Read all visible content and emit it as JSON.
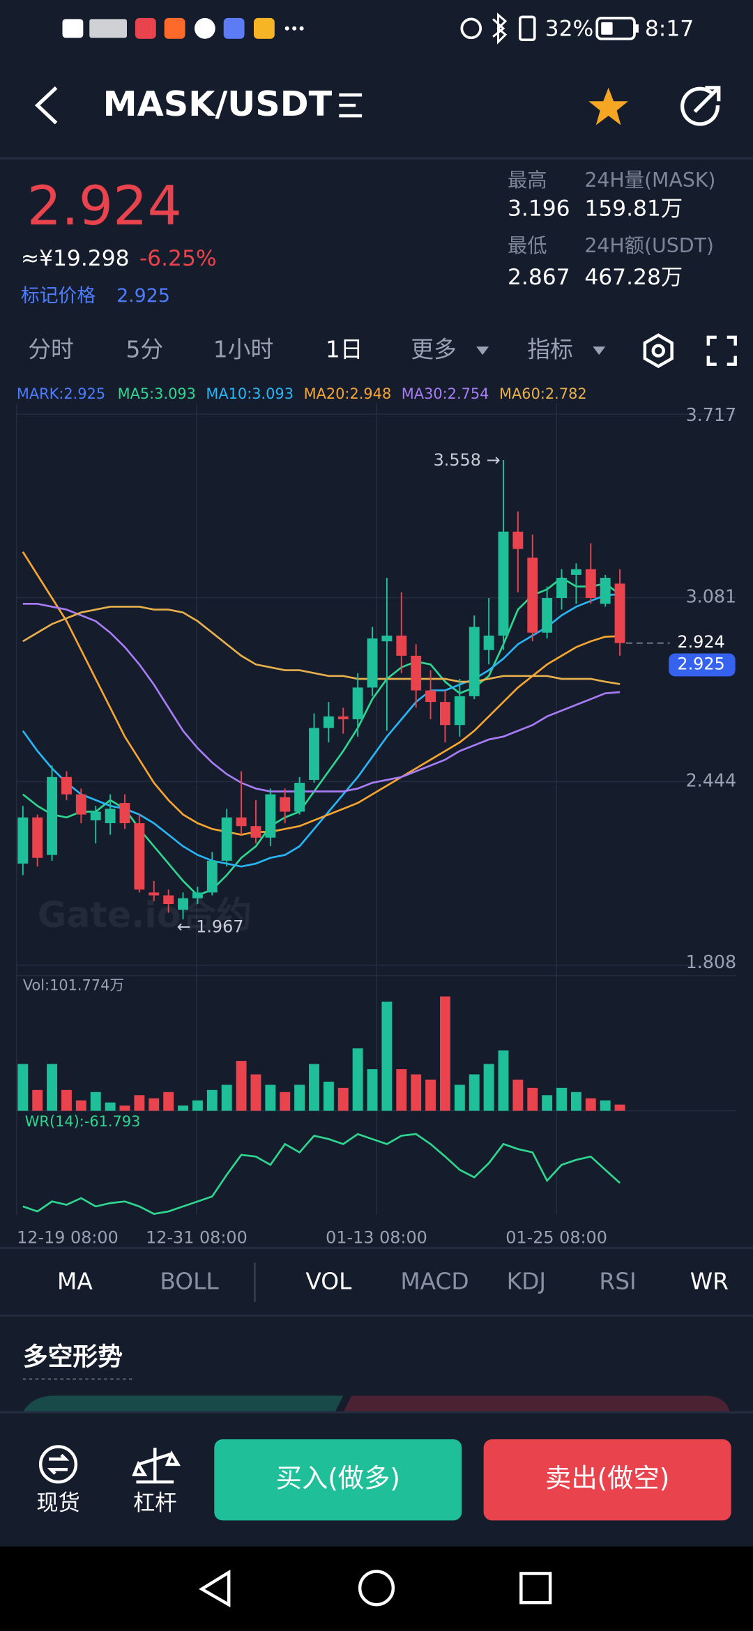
{
  "status_bar": {
    "battery": "32%",
    "time": "8:17"
  },
  "header": {
    "pair": "MASK/USDT"
  },
  "ticker": {
    "price": "2.924",
    "cny": "≈¥19.298",
    "change": "-6.25%",
    "mark_label": "标记价格",
    "mark_price": "2.925",
    "high_label": "最高",
    "high": "3.196",
    "low_label": "最低",
    "low": "2.867",
    "vol_label": "24H量(MASK)",
    "vol": "159.81万",
    "amount_label": "24H额(USDT)",
    "amount": "467.28万"
  },
  "intervals": {
    "items": [
      "分时",
      "5分",
      "1小时",
      "1日",
      "更多",
      "指标"
    ],
    "active": 3
  },
  "legend": [
    {
      "text": "MARK:2.925",
      "color": "#4d7cff"
    },
    {
      "text": "MA5:3.093",
      "color": "#2fd68f"
    },
    {
      "text": "MA10:3.093",
      "color": "#29b6f6"
    },
    {
      "text": "MA20:2.948",
      "color": "#f7a531"
    },
    {
      "text": "MA30:2.754",
      "color": "#a77cf5"
    },
    {
      "text": "MA60:2.782",
      "color": "#e8b04c"
    }
  ],
  "chart": {
    "type": "candlestick",
    "ylim": [
      1.808,
      3.717
    ],
    "yticks": [
      3.717,
      3.081,
      2.444,
      1.808
    ],
    "up_color": "#1fbf9a",
    "down_color": "#e9434d",
    "candles": [
      [
        2.16,
        2.36,
        2.12,
        2.32
      ],
      [
        2.32,
        2.33,
        2.15,
        2.18
      ],
      [
        2.19,
        2.5,
        2.17,
        2.46
      ],
      [
        2.46,
        2.48,
        2.38,
        2.4
      ],
      [
        2.4,
        2.42,
        2.3,
        2.33
      ],
      [
        2.31,
        2.36,
        2.23,
        2.34
      ],
      [
        2.3,
        2.4,
        2.26,
        2.35
      ],
      [
        2.37,
        2.4,
        2.28,
        2.3
      ],
      [
        2.3,
        2.33,
        2.06,
        2.07
      ],
      [
        2.06,
        2.1,
        2.03,
        2.05
      ],
      [
        2.05,
        2.07,
        1.99,
        2.02
      ],
      [
        2.0,
        2.06,
        1.967,
        2.04
      ],
      [
        2.04,
        2.08,
        2.02,
        2.06
      ],
      [
        2.06,
        2.2,
        2.05,
        2.17
      ],
      [
        2.17,
        2.35,
        2.15,
        2.32
      ],
      [
        2.32,
        2.48,
        2.26,
        2.29
      ],
      [
        2.29,
        2.38,
        2.23,
        2.25
      ],
      [
        2.25,
        2.42,
        2.22,
        2.4
      ],
      [
        2.39,
        2.42,
        2.3,
        2.34
      ],
      [
        2.34,
        2.46,
        2.33,
        2.44
      ],
      [
        2.45,
        2.68,
        2.44,
        2.63
      ],
      [
        2.63,
        2.72,
        2.58,
        2.67
      ],
      [
        2.67,
        2.7,
        2.61,
        2.66
      ],
      [
        2.66,
        2.82,
        2.6,
        2.77
      ],
      [
        2.77,
        2.98,
        2.74,
        2.94
      ],
      [
        2.93,
        3.15,
        2.62,
        2.95
      ],
      [
        2.95,
        3.1,
        2.82,
        2.88
      ],
      [
        2.88,
        2.92,
        2.7,
        2.76
      ],
      [
        2.76,
        2.83,
        2.66,
        2.72
      ],
      [
        2.72,
        2.76,
        2.58,
        2.64
      ],
      [
        2.64,
        2.8,
        2.6,
        2.74
      ],
      [
        2.74,
        3.02,
        2.73,
        2.98
      ],
      [
        2.9,
        3.08,
        2.85,
        2.95
      ],
      [
        2.95,
        3.558,
        2.9,
        3.31
      ],
      [
        3.31,
        3.38,
        3.1,
        3.25
      ],
      [
        3.22,
        3.3,
        2.93,
        2.96
      ],
      [
        2.96,
        3.12,
        2.94,
        3.08
      ],
      [
        3.08,
        3.18,
        3.04,
        3.15
      ],
      [
        3.16,
        3.2,
        3.06,
        3.18
      ],
      [
        3.18,
        3.27,
        3.06,
        3.08
      ],
      [
        3.06,
        3.16,
        3.05,
        3.15
      ],
      [
        3.13,
        3.18,
        2.88,
        2.924
      ]
    ],
    "lines": [
      {
        "name": "MA5",
        "color": "#2fd68f",
        "values": [
          2.4,
          2.36,
          2.33,
          2.32,
          2.34,
          2.34,
          2.38,
          2.35,
          2.28,
          2.22,
          2.16,
          2.1,
          2.05,
          2.07,
          2.12,
          2.18,
          2.22,
          2.29,
          2.32,
          2.34,
          2.41,
          2.48,
          2.55,
          2.63,
          2.73,
          2.8,
          2.84,
          2.86,
          2.85,
          2.79,
          2.75,
          2.77,
          2.81,
          2.92,
          3.04,
          3.09,
          3.11,
          3.15,
          3.12,
          3.12,
          3.13,
          3.093
        ]
      },
      {
        "name": "MA10",
        "color": "#29b6f6",
        "values": [
          2.62,
          2.55,
          2.49,
          2.44,
          2.4,
          2.38,
          2.36,
          2.35,
          2.33,
          2.3,
          2.26,
          2.22,
          2.19,
          2.17,
          2.16,
          2.15,
          2.16,
          2.18,
          2.19,
          2.22,
          2.28,
          2.34,
          2.4,
          2.46,
          2.53,
          2.6,
          2.66,
          2.72,
          2.76,
          2.76,
          2.78,
          2.8,
          2.83,
          2.87,
          2.92,
          2.95,
          2.98,
          3.02,
          3.05,
          3.07,
          3.09,
          3.093
        ]
      },
      {
        "name": "MA20",
        "color": "#f7a531",
        "values": [
          3.24,
          3.16,
          3.08,
          3.0,
          2.9,
          2.8,
          2.7,
          2.6,
          2.52,
          2.44,
          2.38,
          2.33,
          2.3,
          2.28,
          2.27,
          2.26,
          2.27,
          2.27,
          2.28,
          2.29,
          2.31,
          2.33,
          2.35,
          2.37,
          2.4,
          2.43,
          2.46,
          2.49,
          2.52,
          2.55,
          2.58,
          2.62,
          2.67,
          2.72,
          2.77,
          2.81,
          2.85,
          2.88,
          2.91,
          2.93,
          2.946,
          2.948
        ]
      },
      {
        "name": "MA30",
        "color": "#a77cf5",
        "values": [
          3.06,
          3.06,
          3.05,
          3.04,
          3.02,
          3.0,
          2.96,
          2.91,
          2.85,
          2.78,
          2.7,
          2.62,
          2.56,
          2.51,
          2.47,
          2.44,
          2.42,
          2.41,
          2.41,
          2.41,
          2.41,
          2.41,
          2.41,
          2.42,
          2.44,
          2.45,
          2.46,
          2.48,
          2.5,
          2.52,
          2.55,
          2.57,
          2.59,
          2.6,
          2.62,
          2.64,
          2.67,
          2.69,
          2.71,
          2.73,
          2.75,
          2.754
        ]
      },
      {
        "name": "MA60",
        "color": "#e8b04c",
        "values": [
          2.93,
          2.96,
          2.99,
          3.01,
          3.03,
          3.04,
          3.05,
          3.05,
          3.05,
          3.04,
          3.04,
          3.03,
          3.0,
          2.96,
          2.92,
          2.88,
          2.85,
          2.84,
          2.83,
          2.83,
          2.82,
          2.81,
          2.81,
          2.8,
          2.8,
          2.8,
          2.8,
          2.8,
          2.8,
          2.8,
          2.79,
          2.79,
          2.8,
          2.81,
          2.81,
          2.81,
          2.81,
          2.8,
          2.8,
          2.8,
          2.79,
          2.782
        ]
      }
    ],
    "high_note": {
      "index": 33,
      "label": "3.558 →"
    },
    "low_note": {
      "index": 11,
      "label": "← 1.967"
    },
    "last_price": {
      "value": 2.924,
      "label": "2.924"
    },
    "mark_tag": "2.925",
    "watermark": "Gate.io合约",
    "x_labels": [
      "12-19 08:00",
      "12-31 08:00",
      "01-13 08:00",
      "01-25 08:00"
    ]
  },
  "volume": {
    "label": "Vol:101.774万",
    "values": [
      765,
      340,
      765,
      340,
      170,
      306,
      136,
      85,
      255,
      204,
      306,
      85,
      170,
      340,
      425,
      816,
      595,
      425,
      306,
      425,
      765,
      476,
      374,
      1020,
      680,
      1785,
      680,
      595,
      510,
      1870,
      425,
      595,
      765,
      986,
      510,
      374,
      255,
      374,
      306,
      204,
      170,
      101.774
    ]
  },
  "wr": {
    "label": "WR(14):-61.793",
    "color": "#2fd68f",
    "ylim": [
      -100,
      0
    ],
    "values": [
      -90,
      -96,
      -84,
      -88,
      -80,
      -90,
      -86,
      -84,
      -90,
      -99,
      -96,
      -90,
      -84,
      -78,
      -52,
      -28,
      -30,
      -40,
      -15,
      -25,
      -5,
      -9,
      -15,
      -3,
      -9,
      -15,
      -5,
      -3,
      -15,
      -30,
      -46,
      -55,
      -38,
      -15,
      -21,
      -25,
      -59,
      -40,
      -34,
      -30,
      -46,
      -61.793
    ]
  },
  "indicator_tabs": {
    "items": [
      "MA",
      "BOLL",
      "VOL",
      "MACD",
      "KDJ",
      "RSI",
      "WR"
    ],
    "active": [
      0,
      2,
      6
    ]
  },
  "section": {
    "title": "多空形势"
  },
  "bottom_bar": {
    "spot": "现货",
    "margin": "杠杆",
    "buy": "买入(做多)",
    "sell": "卖出(做空)"
  }
}
